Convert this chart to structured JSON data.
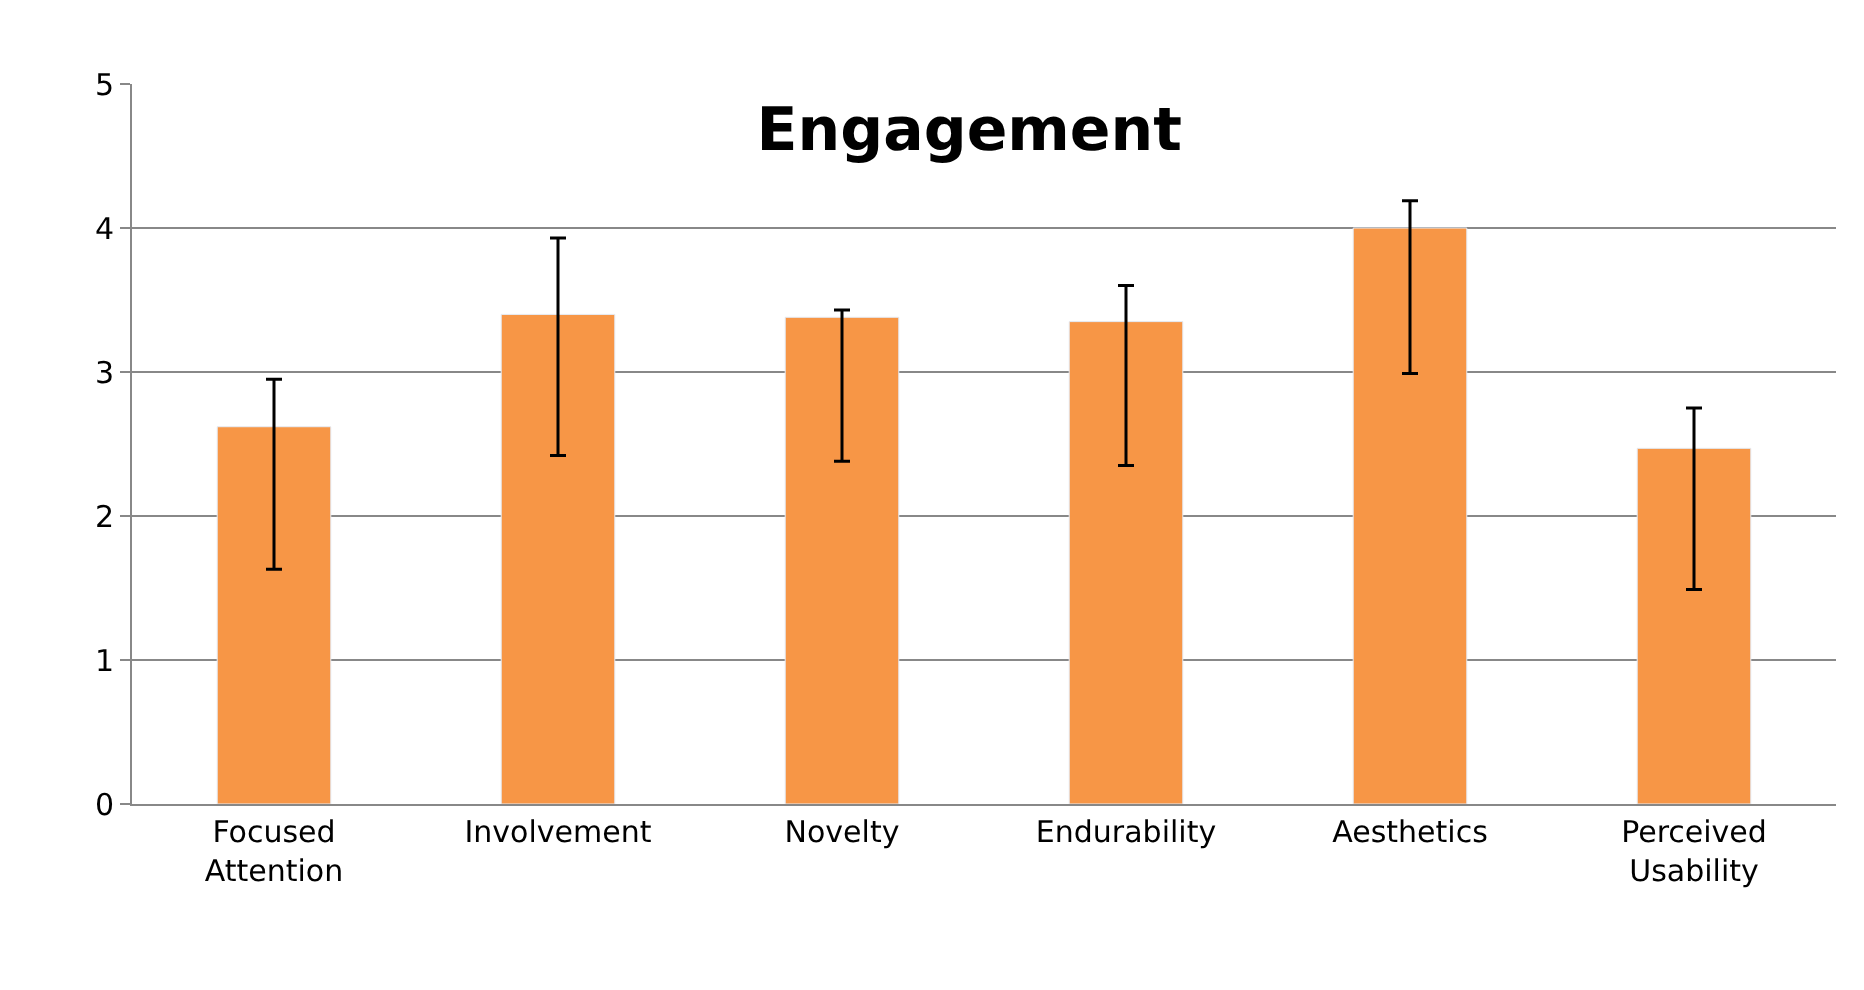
{
  "chart_data": {
    "type": "bar",
    "title": "Engagement",
    "categories": [
      "Focused Attention",
      "Involvement",
      "Novelty",
      "Endurability",
      "Aesthetics",
      "Perceived Usability"
    ],
    "values": [
      2.62,
      3.4,
      3.38,
      3.35,
      4.0,
      2.47
    ],
    "errors": [
      [
        1.63,
        2.95
      ],
      [
        2.42,
        3.93
      ],
      [
        2.38,
        3.43
      ],
      [
        2.35,
        3.6
      ],
      [
        2.99,
        4.19
      ],
      [
        1.49,
        2.75
      ]
    ],
    "color": "#f79646",
    "ylim": [
      0,
      5
    ],
    "yticks": [
      0,
      1,
      2,
      3,
      4,
      5
    ],
    "grid": "y",
    "legend": false
  }
}
